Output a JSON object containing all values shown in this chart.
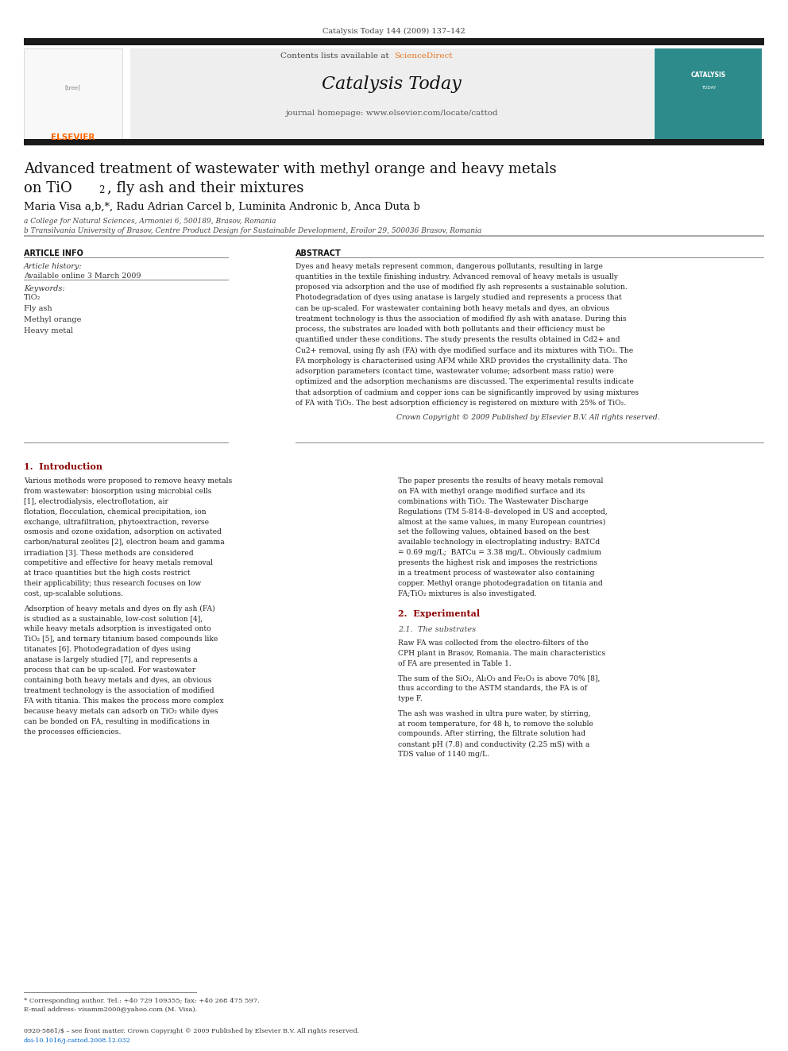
{
  "page_width": 9.92,
  "page_height": 13.23,
  "bg_color": "#ffffff",
  "header_journal_ref": "Catalysis Today 144 (2009) 137–142",
  "header_bar_color": "#1a1a1a",
  "elsevier_color": "#ff6600",
  "journal_title": "Catalysis Today",
  "contents_text": "Contents lists available at ",
  "sciencedirect_text": "ScienceDirect",
  "sciencedirect_color": "#e87722",
  "homepage_text": "journal homepage: www.elsevier.com/locate/cattod",
  "cover_color": "#2e8b8b",
  "cover_text": "CATALYSIS",
  "article_title_line1": "Advanced treatment of wastewater with methyl orange and heavy metals",
  "authors": "Maria Visa a,b,*, Radu Adrian Carcel b, Luminita Andronic b, Anca Duta b",
  "affil_a": "a College for Natural Sciences, Armoniei 6, 500189, Brasov, Romania",
  "affil_b": "b Transilvania University of Brasov, Centre Product Design for Sustainable Development, Eroilor 29, 500036 Brasov, Romania",
  "section_article_info": "ARTICLE INFO",
  "article_history_label": "Article history:",
  "available_online": "Available online 3 March 2009",
  "keywords_label": "Keywords:",
  "keywords": [
    "TiO₂",
    "Fly ash",
    "Methyl orange",
    "Heavy metal"
  ],
  "section_abstract": "ABSTRACT",
  "abstract_text": "Dyes and heavy metals represent common, dangerous pollutants, resulting in large quantities in the textile finishing industry. Advanced removal of heavy metals is usually proposed via adsorption and the use of modified fly ash represents a sustainable solution. Photodegradation of dyes using anatase is largely studied and represents a process that can be up-scaled. For wastewater containing both heavy metals and dyes, an obvious treatment technology is thus the association of modified fly ash with anatase. During this process, the substrates are loaded with both pollutants and their efficiency must be quantified under these conditions. The study presents the results obtained in Cd2+ and Cu2+ removal, using fly ash (FA) with dye modified surface and its mixtures with TiO₂. The FA morphology is characterised using AFM while XRD provides the crystallinity data. The adsorption parameters (contact time, wastewater volume; adsorbent mass ratio) were optimized and the adsorption mechanisms are discussed. The experimental results indicate that adsorption of cadmium and copper ions can be significantly improved by using mixtures of FA with TiO₂. The best adsorption efficiency is registered on mixture with 25% of TiO₂.",
  "copyright_text": "Crown Copyright © 2009 Published by Elsevier B.V. All rights reserved.",
  "section1_title": "1.  Introduction",
  "intro_left_p1": "    Various methods were proposed to remove heavy metals from wastewater: biosorption using microbial cells [1], electrodialysis, electroflotation, air flotation, flocculation, chemical precipitation, ion exchange, ultrafiltration, phytoextraction, reverse osmosis and ozone oxidation, adsorption on activated carbon/natural zeolites [2], electron beam and gamma irradiation [3]. These methods are considered competitive and effective for heavy metals removal at trace quantities but the high costs restrict their applicability; thus research focuses on low cost, up-scalable solutions.",
  "intro_left_p2": "    Adsorption of heavy metals and dyes on fly ash (FA) is studied as a sustainable, low-cost solution [4], while heavy metals adsorption is investigated onto TiO₂ [5], and ternary titanium based compounds like titanates [6]. Photodegradation of dyes using anatase is largely studied [7], and represents a process that can be up-scaled. For wastewater containing both heavy metals and dyes, an obvious treatment technology is the association of modified FA with titania. This makes the process more complex because heavy metals can adsorb on TiO₂ while dyes can be bonded on FA, resulting in modifications in the processes efficiencies.",
  "intro_right": "    The paper presents the results of heavy metals removal on FA with methyl orange modified surface and its combinations with TiO₂. The Wastewater Discharge Regulations (TM 5-814-8–developed in US and accepted, almost at the same values, in many European countries) set the following values, obtained based on the best available technology in electroplating industry: BATCd = 0.69 mg/L;  BATCu = 3.38 mg/L. Obviously cadmium presents the highest risk and imposes the restrictions in a treatment process of wastewater also containing copper. Methyl orange photodegradation on titania and FA;TiO₂ mixtures is also investigated.",
  "section2_title": "2.  Experimental",
  "section21_title": "2.1.  The substrates",
  "substrates_right_p1": "    Raw FA was collected from the electro-filters of the CPH plant in Brasov, Romania. The main characteristics of FA are presented in Table 1.",
  "substrates_right_p2": "    The sum of the SiO₂, Al₂O₃ and Fe₂O₃ is above 70% [8], thus according to the ASTM standards, the FA is of type F.",
  "substrates_right_p3": "    The ash was washed in ultra pure water, by stirring, at room temperature, for 48 h, to remove the soluble compounds. After stirring, the filtrate solution had constant pH (7.8) and conductivity (2.25 mS) with a TDS value of 1140 mg/L.",
  "footnote_corresponding": "* Corresponding author. Tel.: +40 729 109355; fax: +40 268 475 597.",
  "footnote_email": "E-mail address: visamm2000@yahoo.com (M. Visa).",
  "footer_issn": "0920-5861/$ – see front matter. Crown Copyright © 2009 Published by Elsevier B.V. All rights reserved.",
  "footer_doi": "doi:10.1016/j.cattod.2008.12.032",
  "link_color": "#0066cc",
  "intro_title_color": "#8B0000",
  "text_color": "#222222",
  "light_rule_color": "#aaaaaa",
  "rule_color": "#888888"
}
